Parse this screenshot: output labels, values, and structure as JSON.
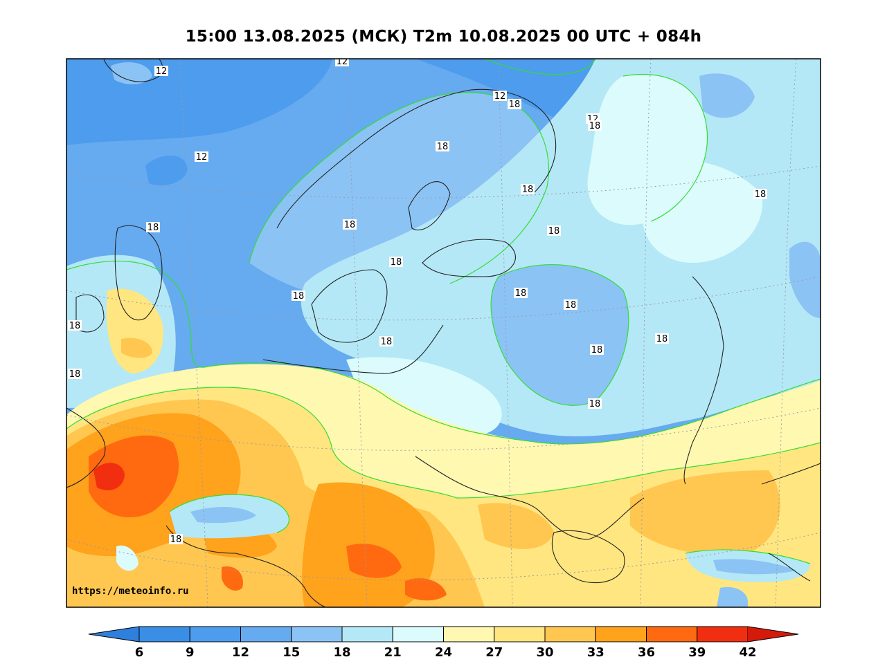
{
  "title": "15:00 13.08.2025 (МСК) T2m 10.08.2025 00 UTC + 084h",
  "watermark": "https://meteoinfo.ru",
  "colorbar": {
    "ticks": [
      "6",
      "9",
      "12",
      "15",
      "18",
      "21",
      "24",
      "27",
      "30",
      "33",
      "36",
      "39",
      "42"
    ],
    "colors": [
      "#3a8ee6",
      "#4d9ced",
      "#66aaf0",
      "#8cc3f5",
      "#b4e8f6",
      "#dcfbfc",
      "#fff8b0",
      "#ffe680",
      "#ffc750",
      "#ffa21c",
      "#ff6a10",
      "#f22e10"
    ],
    "under_color": "#2f7fdc",
    "over_color": "#d41a0a"
  },
  "contour_labels": [
    "12",
    "12",
    "12",
    "12",
    "12",
    "18",
    "18",
    "18",
    "18",
    "18",
    "18",
    "18",
    "18",
    "18",
    "18",
    "18",
    "18",
    "18",
    "18",
    "18",
    "18",
    "18",
    "18",
    "18"
  ]
}
